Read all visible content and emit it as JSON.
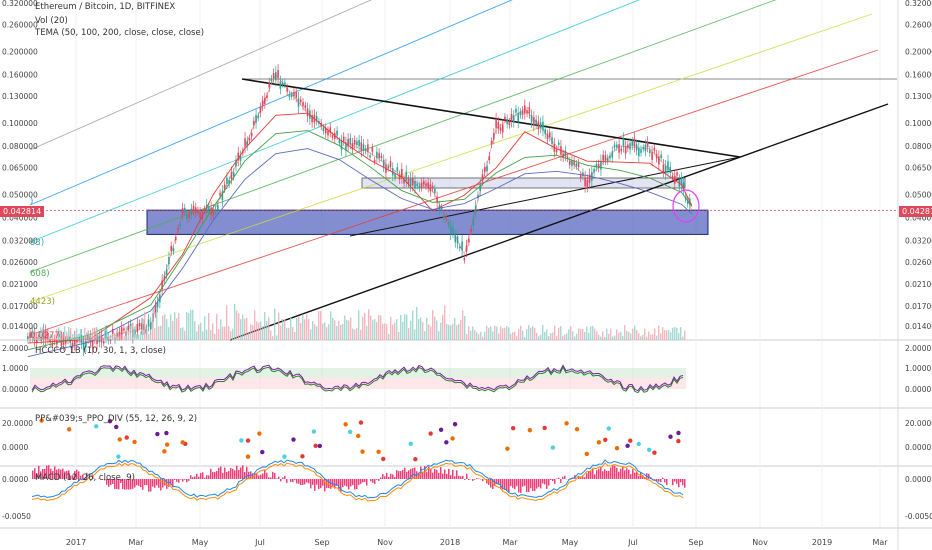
{
  "header": {
    "title": "Ethereum / Bitcoin, 1D, BITFINEX",
    "line2": "Vol (20)",
    "line3": "TEMA (50, 100, 200, close, close, close)"
  },
  "price_current": "0.042814",
  "panels": {
    "hccco": "HCCCO_LB (10, 30, 1, 3, close)",
    "ppo": "PP&#039;s_PPO_DIV (55, 12, 26, 9, 2)",
    "macd": "MACD (12, 26, close, 9)"
  },
  "left_labels": {
    "l1": "93)",
    "l2": "608)",
    "l3": "4423)",
    "l4": "0.0277)",
    "l5": ")"
  },
  "colors": {
    "up": "#26a69a",
    "down": "#e0475b",
    "zone": "#3f51b5",
    "fan": [
      "#9e9e9e",
      "#2196f3",
      "#26c6da",
      "#4caf50",
      "#cddc39",
      "#ff9800",
      "#e53935"
    ]
  },
  "chart_data": {
    "type": "line",
    "title": "Ethereum / Bitcoin, 1D, BITFINEX",
    "xlabel": "",
    "ylabel": "",
    "x": [
      "2016-11",
      "2017-01",
      "2017-03",
      "2017-04",
      "2017-05",
      "2017-06",
      "2017-07",
      "2017-08",
      "2017-09",
      "2017-10",
      "2017-11",
      "2017-12",
      "2018-01",
      "2018-02",
      "2018-03",
      "2018-04",
      "2018-05",
      "2018-06",
      "2018-07",
      "2018-08",
      "2018-08-25"
    ],
    "series": [
      {
        "values": [
          0.0125,
          0.012,
          0.014,
          0.042,
          0.042,
          0.08,
          0.16,
          0.11,
          0.085,
          0.075,
          0.06,
          0.052,
          0.028,
          0.095,
          0.115,
          0.08,
          0.058,
          0.08,
          0.078,
          0.056,
          0.0428
        ]
      }
    ],
    "y_ticks": [
      "0.320000",
      "0.260000",
      "0.200000",
      "0.160000",
      "0.130000",
      "0.100000",
      "0.080000",
      "0.065000",
      "0.050000",
      "0.040000",
      "0.032000",
      "0.026000",
      "0.021000",
      "0.017000",
      "0.014000"
    ],
    "x_ticks": [
      "2017",
      "Mar",
      "May",
      "Jul",
      "Sep",
      "Nov",
      "2018",
      "Mar",
      "May",
      "Jul",
      "Sep",
      "Nov",
      "2019",
      "Mar"
    ],
    "ylim": [
      0.012,
      0.34
    ],
    "yscale": "log",
    "support_zone": [
      0.034,
      0.043
    ],
    "hccco_ticks": [
      "2.0000",
      "1.0000",
      "0.0000"
    ],
    "ppo_ticks": [
      "20.0000",
      "0.0000"
    ],
    "macd_ticks": [
      "0.0000",
      "-0.0050"
    ]
  }
}
